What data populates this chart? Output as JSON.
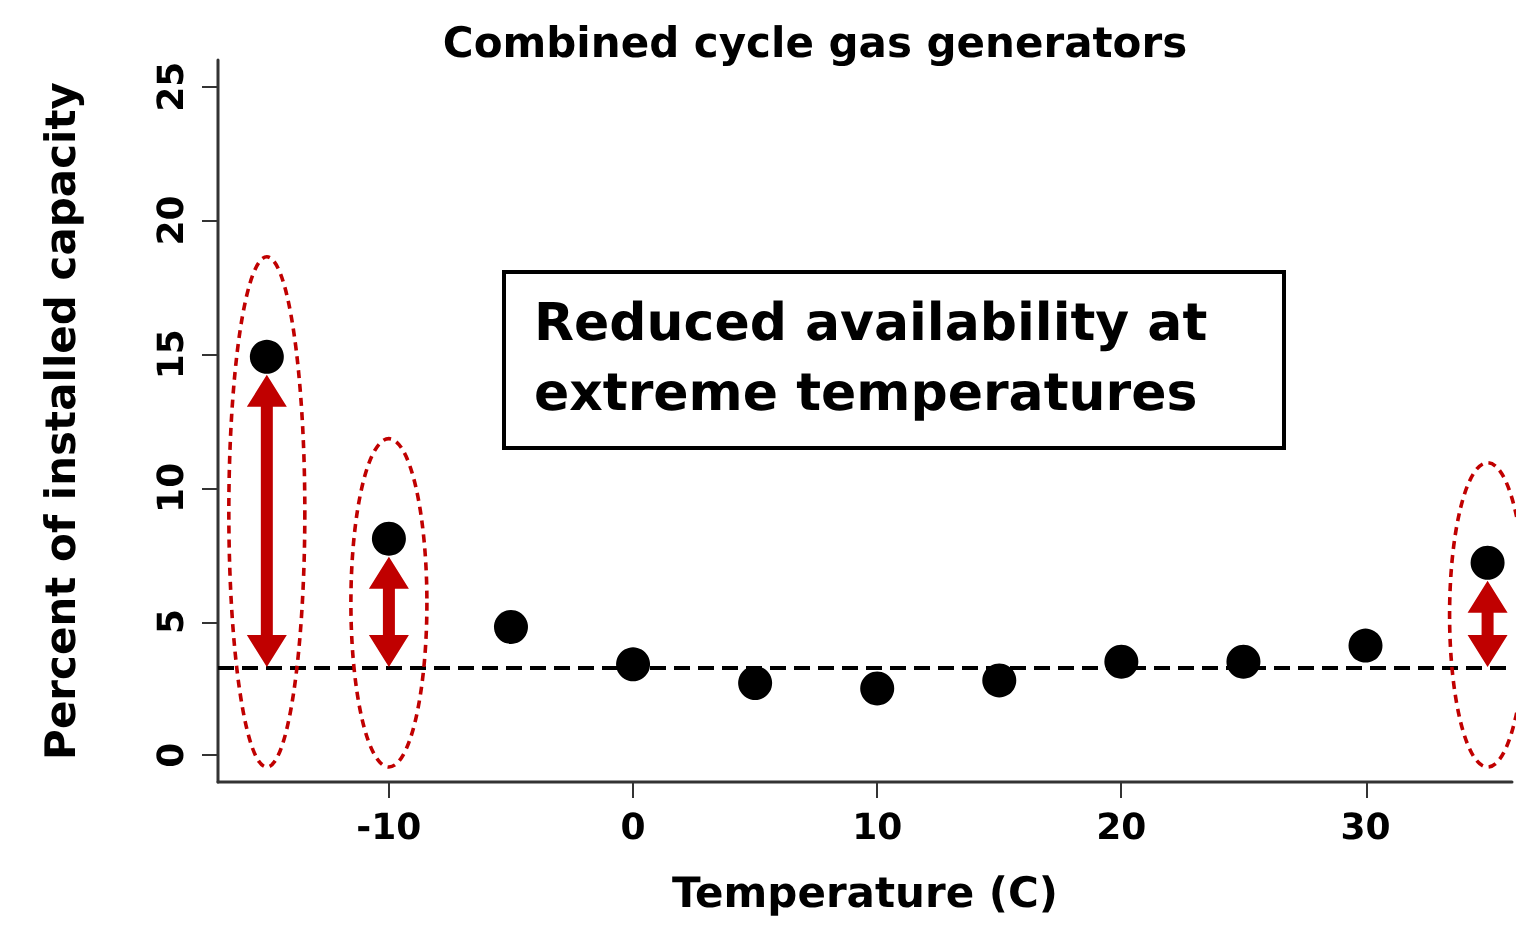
{
  "chart_data": {
    "type": "scatter",
    "title": "Combined cycle gas generators",
    "xlabel": "Temperature (C)",
    "ylabel": "Percent of installed capacity",
    "annotations": [
      "Reduced availability at extreme temperatures"
    ],
    "x": [
      -15,
      -10,
      -5,
      0,
      5,
      10,
      15,
      20,
      25,
      30,
      35
    ],
    "series": [
      {
        "color": "#000000",
        "values": [
          14.9,
          8.1,
          4.8,
          3.4,
          2.7,
          2.5,
          2.8,
          3.5,
          3.5,
          4.1,
          7.2
        ]
      }
    ],
    "xlim": [
      -17,
      36
    ],
    "xticks": [
      -10,
      0,
      10,
      20,
      30
    ],
    "ylim": [
      -1,
      26
    ],
    "yticks": [
      0,
      5,
      10,
      15,
      20,
      25
    ],
    "ref_lines": [
      {
        "axis": "y",
        "value": 3.3,
        "color": "#000000",
        "line_style": "dashed"
      }
    ],
    "marker": "circle"
  }
}
